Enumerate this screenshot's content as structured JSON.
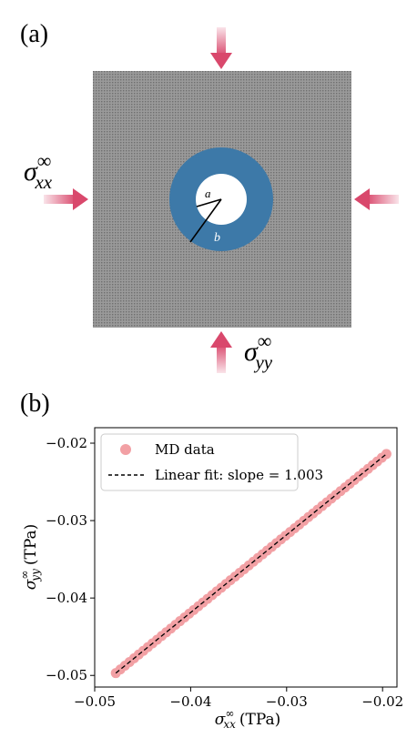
{
  "panel_a": {
    "label": "(a)",
    "sigma_xx_label": "σ",
    "sigma_xx_sup": "∞",
    "sigma_xx_sub": "xx",
    "sigma_yy_label": "σ",
    "sigma_yy_sup": "∞",
    "sigma_yy_sub": "yy",
    "inner_radius_label": "a",
    "outer_radius_label": "b",
    "colors": {
      "matrix": "#8f8f8f",
      "annulus": "#3d79a8",
      "hole": "#ffffff",
      "arrow": "#d9486c"
    }
  },
  "panel_b": {
    "label": "(b)",
    "legend": {
      "md_label": "MD data",
      "fit_label": "Linear fit: slope = 1.003"
    },
    "x_axis": {
      "sym": "σ",
      "sup": "∞",
      "sub": "xx",
      "unit": "(TPa)"
    },
    "y_axis": {
      "sym": "σ",
      "sup": "∞",
      "sub": "yy",
      "unit": "(TPa)"
    },
    "colors": {
      "md_points": "#f2a0a4",
      "fit_line": "#000000"
    }
  },
  "chart_data": {
    "type": "scatter",
    "xlim": [
      -0.05,
      -0.0185
    ],
    "ylim": [
      -0.0515,
      -0.018
    ],
    "x_ticks": [
      -0.05,
      -0.04,
      -0.03,
      -0.02
    ],
    "y_ticks": [
      -0.05,
      -0.04,
      -0.03,
      -0.02
    ],
    "x_tick_labels": [
      "−0.05",
      "−0.04",
      "−0.03",
      "−0.02"
    ],
    "y_tick_labels": [
      "−0.05",
      "−0.04",
      "−0.03",
      "−0.02"
    ],
    "legend_position": "top-left",
    "grid": false,
    "series": [
      {
        "name": "MD data",
        "kind": "scatter",
        "x_range": [
          -0.0478,
          -0.0196
        ],
        "y_range": [
          -0.0497,
          -0.0214
        ],
        "count": 60
      },
      {
        "name": "Linear fit: slope = 1.003",
        "kind": "line",
        "style": "dashed",
        "x": [
          -0.0478,
          -0.0196
        ],
        "y": [
          -0.0497,
          -0.0214
        ]
      }
    ]
  }
}
